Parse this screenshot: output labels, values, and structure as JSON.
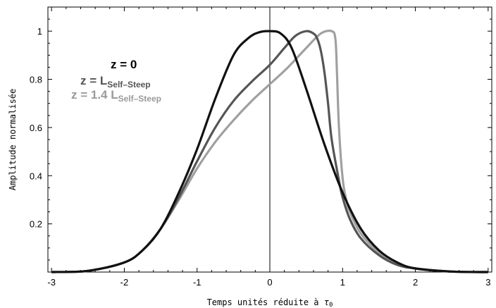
{
  "chart_data": {
    "type": "line",
    "title": "",
    "xlabel": "Temps unités réduite à τ₀",
    "xlabel_main": "Temps unités réduite à ",
    "xlabel_sym": "τ",
    "xlabel_sub": "0",
    "ylabel": "Amplitude normalisée",
    "xlim": [
      -3.05,
      3.05
    ],
    "ylim": [
      0,
      1.1
    ],
    "xticks": [
      -3,
      -2,
      -1,
      0,
      1,
      2,
      3
    ],
    "xtick_labels": [
      "-3",
      "-2",
      "-1",
      "0",
      "1",
      "2",
      "3"
    ],
    "yticks": [
      0.2,
      0.4,
      0.6,
      0.8,
      1
    ],
    "ytick_labels": [
      "0.2",
      "0.4",
      "0.6",
      "0.8",
      "1"
    ],
    "legend": [
      {
        "main": "z = ",
        "big": "0",
        "sub": "",
        "color": "#000000"
      },
      {
        "main": "z = ",
        "big": "L",
        "sub": "Self–Steep",
        "color": "#555555"
      },
      {
        "main": "z = 1.4 ",
        "big": "L",
        "sub": "Self–Steep",
        "color": "#999999"
      }
    ],
    "series": [
      {
        "color": "#111111",
        "x": [
          -3,
          -2.5,
          -2,
          -1.75,
          -1.5,
          -1.25,
          -1,
          -0.75,
          -0.5,
          -0.3,
          -0.15,
          0,
          0.15,
          0.3,
          0.5,
          0.75,
          1,
          1.25,
          1.5,
          1.75,
          2,
          2.5,
          3
        ],
        "y": [
          0.0,
          0.005,
          0.04,
          0.09,
          0.18,
          0.33,
          0.51,
          0.72,
          0.9,
          0.97,
          0.995,
          1.0,
          0.99,
          0.93,
          0.76,
          0.53,
          0.33,
          0.18,
          0.09,
          0.04,
          0.015,
          0.002,
          0.0
        ]
      },
      {
        "color": "#555555",
        "x": [
          -3,
          -2.5,
          -2,
          -1.75,
          -1.5,
          -1.25,
          -1,
          -0.75,
          -0.5,
          -0.25,
          0,
          0.2,
          0.35,
          0.5,
          0.6,
          0.65,
          0.7,
          0.75,
          0.8,
          0.85,
          0.95,
          1,
          1.1,
          1.25,
          1.5,
          1.75,
          2,
          2.5,
          3
        ],
        "y": [
          0.0,
          0.005,
          0.04,
          0.09,
          0.18,
          0.31,
          0.46,
          0.6,
          0.71,
          0.79,
          0.86,
          0.93,
          0.98,
          1.0,
          0.99,
          0.97,
          0.92,
          0.83,
          0.7,
          0.55,
          0.38,
          0.31,
          0.22,
          0.14,
          0.07,
          0.03,
          0.015,
          0.002,
          0.0
        ]
      },
      {
        "color": "#a0a0a0",
        "x": [
          -3,
          -2.5,
          -2,
          -1.75,
          -1.5,
          -1.25,
          -1,
          -0.75,
          -0.5,
          -0.25,
          0,
          0.25,
          0.5,
          0.7,
          0.85,
          0.9,
          0.92,
          0.95,
          1,
          1.05,
          1.1,
          1.25,
          1.5,
          1.75,
          2,
          2.5,
          3
        ],
        "y": [
          0.0,
          0.005,
          0.04,
          0.09,
          0.18,
          0.3,
          0.43,
          0.54,
          0.63,
          0.71,
          0.78,
          0.85,
          0.93,
          0.99,
          1.0,
          0.97,
          0.85,
          0.6,
          0.39,
          0.3,
          0.25,
          0.16,
          0.08,
          0.035,
          0.015,
          0.002,
          0.0
        ]
      }
    ]
  }
}
